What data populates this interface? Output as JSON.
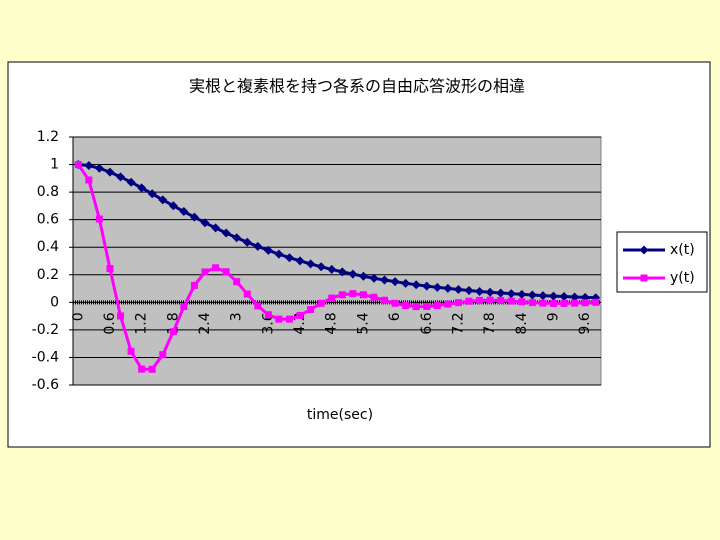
{
  "chart_data": {
    "type": "line",
    "title": "実根と複素根を持つ各系の自由応答波形の相違",
    "x_label": "time(sec)",
    "categories": [
      "0",
      null,
      null,
      "0.6",
      null,
      null,
      "1.2",
      null,
      null,
      "1.8",
      null,
      null,
      "2.4",
      null,
      null,
      "3",
      null,
      null,
      "3.6",
      null,
      null,
      "4.2",
      null,
      null,
      "4.8",
      null,
      null,
      "5.4",
      null,
      null,
      "6",
      null,
      null,
      "6.6",
      null,
      null,
      "7.2",
      null,
      null,
      "7.8",
      null,
      null,
      "8.4",
      null,
      null,
      "9",
      null,
      null,
      "9.6",
      null
    ],
    "series": [
      {
        "name": "x(t)",
        "color": "#000080",
        "marker": "diamond",
        "values": [
          1,
          0.993,
          0.973,
          0.945,
          0.911,
          0.872,
          0.831,
          0.788,
          0.744,
          0.701,
          0.659,
          0.618,
          0.578,
          0.54,
          0.503,
          0.469,
          0.436,
          0.406,
          0.377,
          0.35,
          0.324,
          0.301,
          0.279,
          0.258,
          0.239,
          0.221,
          0.205,
          0.189,
          0.175,
          0.162,
          0.15,
          0.138,
          0.128,
          0.118,
          0.109,
          0.101,
          0.093,
          0.086,
          0.079,
          0.073,
          0.068,
          0.063,
          0.058,
          0.053,
          0.049,
          0.045,
          0.042,
          0.039,
          0.036,
          0.033
        ]
      },
      {
        "name": "y(t)",
        "color": "#FF00FF",
        "marker": "square",
        "values": [
          1,
          0.888,
          0.605,
          0.245,
          -0.099,
          -0.355,
          -0.485,
          -0.486,
          -0.38,
          -0.213,
          -0.031,
          0.123,
          0.22,
          0.251,
          0.222,
          0.15,
          0.06,
          -0.026,
          -0.09,
          -0.122,
          -0.122,
          -0.095,
          -0.052,
          -0.007,
          0.031,
          0.055,
          0.063,
          0.055,
          0.037,
          0.015,
          -0.007,
          -0.023,
          -0.031,
          -0.03,
          -0.024,
          -0.013,
          -0.002,
          0.008,
          0.014,
          0.016,
          0.014,
          0.009,
          0.004,
          -0.002,
          -0.006,
          -0.008,
          -0.008,
          -0.006,
          -0.003,
          0
        ]
      }
    ],
    "ylim": [
      -0.6,
      1.2
    ],
    "yticks": [
      -0.6,
      -0.4,
      -0.2,
      0,
      0.2,
      0.4,
      0.6,
      0.8,
      1,
      1.2
    ],
    "grid": true,
    "legend": "right"
  }
}
